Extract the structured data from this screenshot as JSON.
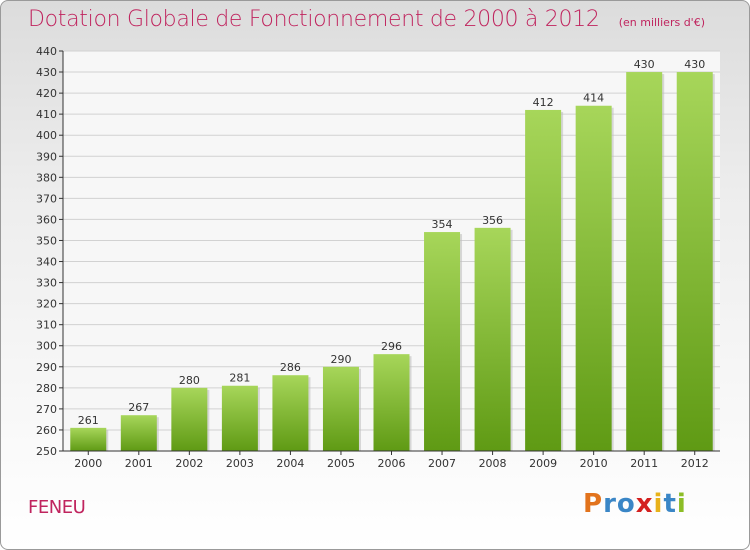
{
  "chart_data": {
    "type": "bar",
    "title": "Dotation Globale de Fonctionnement de 2000 à 2012",
    "subtitle": "(en milliers d'€)",
    "categories": [
      "2000",
      "2001",
      "2002",
      "2003",
      "2004",
      "2005",
      "2006",
      "2007",
      "2008",
      "2009",
      "2010",
      "2011",
      "2012"
    ],
    "values": [
      261,
      267,
      280,
      281,
      286,
      290,
      296,
      354,
      356,
      412,
      414,
      430,
      430
    ],
    "ylim": [
      250,
      440
    ],
    "ytick_step": 10,
    "grid": true,
    "bar_colors": {
      "top": "#a7d65a",
      "bottom": "#5f9a14"
    }
  },
  "footer": {
    "commune": "FENEU",
    "logo_letters": [
      {
        "char": "P",
        "color": "#e2731c"
      },
      {
        "char": "r",
        "color": "#3a86c6"
      },
      {
        "char": "o",
        "color": "#3a86c6"
      },
      {
        "char": "x",
        "color": "#d4201f"
      },
      {
        "char": "i",
        "color": "#e8b21a"
      },
      {
        "char": "t",
        "color": "#3a86c6"
      },
      {
        "char": "i",
        "color": "#8cbd26"
      }
    ]
  }
}
